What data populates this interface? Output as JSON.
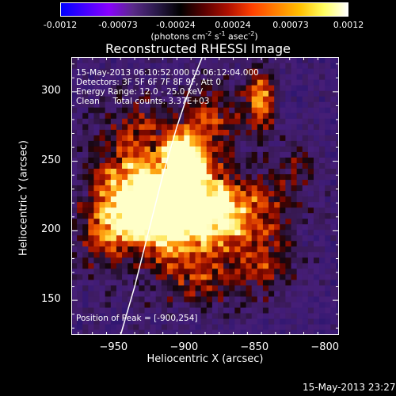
{
  "colorbar": {
    "ticks": [
      "-0.0012",
      "-0.00073",
      "-0.00024",
      "0.00024",
      "0.00073",
      "0.0012"
    ],
    "units_line": "(photons cm",
    "units_exp1": "-2",
    "units_mid": " s",
    "units_exp2": "-1",
    "units_mid2": " asec",
    "units_exp3": "-2",
    "units_end": ")",
    "colors": [
      "#0000ff",
      "#4400ff",
      "#8800ff",
      "#5a2a8a",
      "#2a1a4a",
      "#000000",
      "#5a0000",
      "#b01000",
      "#ff4000",
      "#ff8000",
      "#ffc000",
      "#ffff60",
      "#ffffff"
    ]
  },
  "title": "Reconstructed RHESSI Image",
  "info": {
    "line1": "15-May-2013 06:10:52.000 to 06:12:04.000",
    "line2": "Detectors: 3F 5F 6F 7F 8F 9F, Att 0",
    "line3": "Energy Range: 12.0 - 25.0 keV",
    "line4": "Clean     Total counts: 3.37E+03",
    "peak": "Position of Peak = [-900,254]"
  },
  "footer_timestamp": "15-May-2013 23:27",
  "chart_data": {
    "type": "heatmap",
    "title": "Reconstructed RHESSI Image",
    "xlabel": "Heliocentric X (arcsec)",
    "ylabel": "Heliocentric Y (arcsec)",
    "xlim": [
      -980,
      -790
    ],
    "ylim": [
      125,
      325
    ],
    "x_ticks": [
      -950,
      -900,
      -850,
      -800
    ],
    "x_tick_labels": [
      "−950",
      "−900",
      "−850",
      "−800"
    ],
    "y_ticks": [
      150,
      200,
      250,
      300
    ],
    "y_tick_labels": [
      "150",
      "200",
      "250",
      "300"
    ],
    "colorbar_range": [
      -0.0012,
      0.0012
    ],
    "peak": [
      -900,
      254
    ],
    "sources": [
      {
        "x": -900,
        "y": 254,
        "amp": 1.0,
        "sx": 10,
        "sy": 12
      },
      {
        "x": -905,
        "y": 225,
        "amp": 0.85,
        "sx": 25,
        "sy": 18
      },
      {
        "x": -915,
        "y": 205,
        "amp": 0.7,
        "sx": 30,
        "sy": 15
      },
      {
        "x": -940,
        "y": 230,
        "amp": 0.55,
        "sx": 18,
        "sy": 22
      },
      {
        "x": -860,
        "y": 215,
        "amp": 0.55,
        "sx": 25,
        "sy": 18
      },
      {
        "x": -845,
        "y": 295,
        "amp": 0.7,
        "sx": 8,
        "sy": 16
      },
      {
        "x": -880,
        "y": 280,
        "amp": 0.5,
        "sx": 16,
        "sy": 20
      },
      {
        "x": -935,
        "y": 275,
        "amp": 0.35,
        "sx": 20,
        "sy": 20
      },
      {
        "x": -890,
        "y": 170,
        "amp": 0.45,
        "sx": 30,
        "sy": 18
      },
      {
        "x": -840,
        "y": 175,
        "amp": 0.35,
        "sx": 15,
        "sy": 15
      },
      {
        "x": -820,
        "y": 245,
        "amp": 0.3,
        "sx": 12,
        "sy": 15
      },
      {
        "x": -960,
        "y": 190,
        "amp": 0.3,
        "sx": 12,
        "sy": 25
      }
    ],
    "limb_curve": [
      [
        -945,
        125
      ],
      [
        -935,
        160
      ],
      [
        -925,
        200
      ],
      [
        -915,
        240
      ],
      [
        -905,
        275
      ],
      [
        -895,
        305
      ],
      [
        -887,
        325
      ]
    ]
  }
}
